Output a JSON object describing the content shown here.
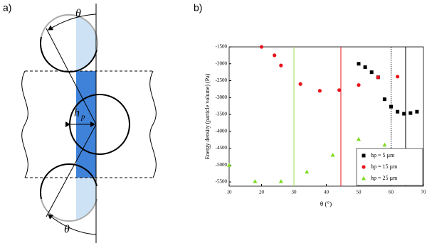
{
  "panel_a": {
    "label": "a)",
    "theta_top": "θ",
    "theta_bottom": "θ",
    "h_main": "h",
    "h_sub": "p"
  },
  "chart_data": {
    "type": "scatter",
    "panel_label": "b)",
    "x_label": "θ (°)",
    "y_label": "Energy density (particle volume) (Pa)",
    "xlim": [
      10,
      70
    ],
    "ylim": [
      -5625,
      -1500
    ],
    "xticks": [
      10,
      20,
      30,
      40,
      50,
      60,
      70
    ],
    "yticks": [
      -1500,
      -2000,
      -2500,
      -3000,
      -3500,
      -4000,
      -4500,
      -5000,
      -5500
    ],
    "legend": "lower right",
    "series": [
      {
        "name": "hp = 5 µm",
        "color": "#000000",
        "marker": "square",
        "x": [
          50,
          52,
          54,
          56,
          58,
          60,
          62,
          64,
          66,
          68
        ],
        "values": [
          -2000,
          -2100,
          -2250,
          -2400,
          -3050,
          -3270,
          -3420,
          -3480,
          -3460,
          -3420
        ]
      },
      {
        "name": "hp = 15 µm",
        "color": "#e8141c",
        "marker": "circle",
        "x": [
          20,
          24,
          26,
          32,
          38,
          44,
          50,
          56,
          62
        ],
        "values": [
          -1500,
          -1750,
          -2050,
          -2600,
          -2800,
          -2780,
          -2630,
          -2400,
          -2380
        ]
      },
      {
        "name": "hp = 25 µm",
        "color": "#7ddc1f",
        "marker": "triangle",
        "x": [
          10,
          18,
          26,
          34,
          42,
          50,
          58
        ],
        "values": [
          -5000,
          -5480,
          -5480,
          -5200,
          -4700,
          -4230,
          -4400
        ]
      }
    ],
    "vlines": [
      {
        "value": 30,
        "color": "#9be04a",
        "style": "solid"
      },
      {
        "value": 44.5,
        "color": "#e8141c",
        "style": "solid"
      },
      {
        "value": 60,
        "color": "#000000",
        "style": "dotted"
      },
      {
        "value": 64.5,
        "color": "#000000",
        "style": "solid"
      }
    ]
  }
}
